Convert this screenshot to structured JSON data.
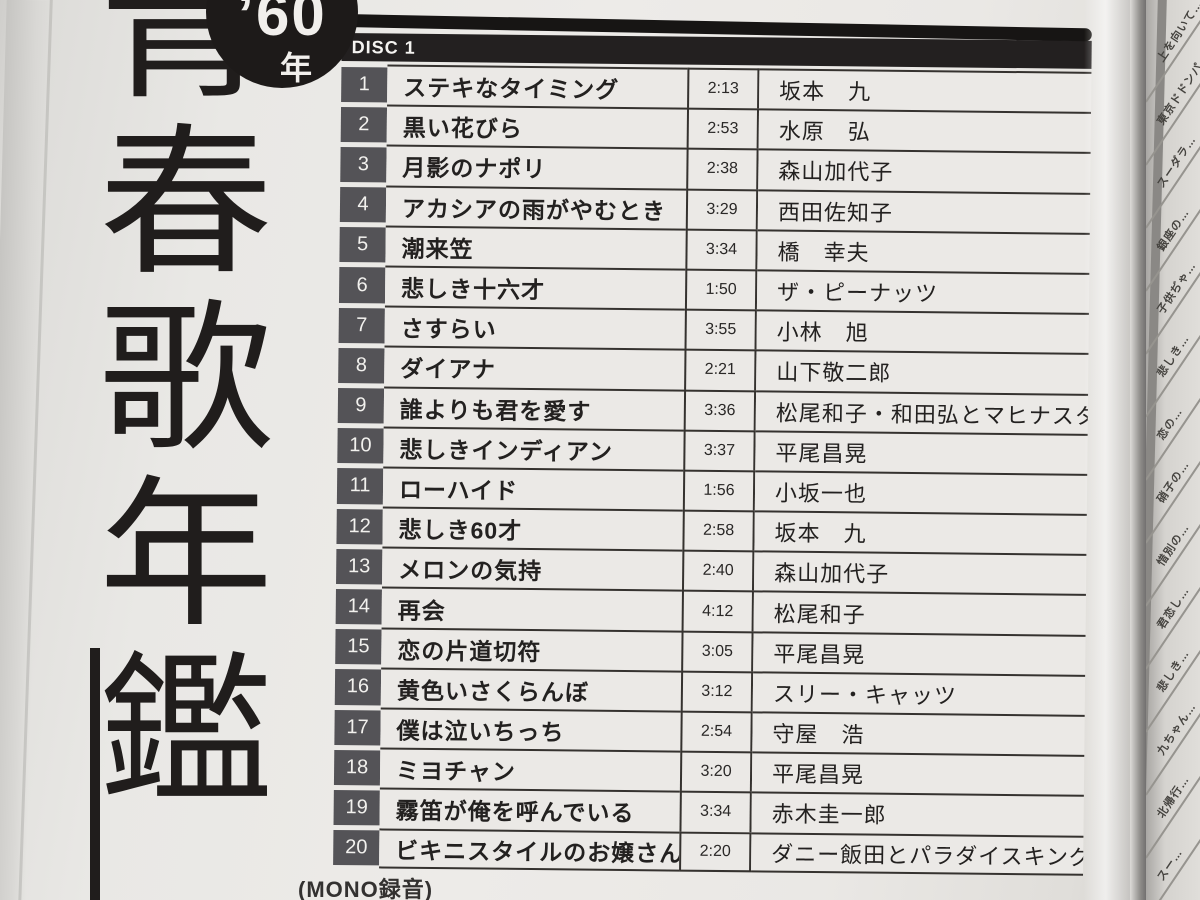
{
  "page": {
    "series_title_chars": [
      "青",
      "春",
      "歌",
      "年",
      "鑑"
    ],
    "year_badge": {
      "year": "’60",
      "suffix": "年"
    },
    "footer_note": "(MONO録音)"
  },
  "tracklist": {
    "header": "DISC 1",
    "tracks": [
      {
        "no": "1",
        "title": "ステキなタイミング",
        "time": "2:13",
        "artist": "坂本　九"
      },
      {
        "no": "2",
        "title": "黒い花びら",
        "time": "2:53",
        "artist": "水原　弘"
      },
      {
        "no": "3",
        "title": "月影のナポリ",
        "time": "2:38",
        "artist": "森山加代子"
      },
      {
        "no": "4",
        "title": "アカシアの雨がやむとき",
        "time": "3:29",
        "artist": "西田佐知子"
      },
      {
        "no": "5",
        "title": "潮来笠",
        "time": "3:34",
        "artist": "橋　幸夫"
      },
      {
        "no": "6",
        "title": "悲しき十六才",
        "time": "1:50",
        "artist": "ザ・ピーナッツ"
      },
      {
        "no": "7",
        "title": "さすらい",
        "time": "3:55",
        "artist": "小林　旭"
      },
      {
        "no": "8",
        "title": "ダイアナ",
        "time": "2:21",
        "artist": "山下敬二郎"
      },
      {
        "no": "9",
        "title": "誰よりも君を愛す",
        "time": "3:36",
        "artist": "松尾和子・和田弘とマヒナスターズ"
      },
      {
        "no": "10",
        "title": "悲しきインディアン",
        "time": "3:37",
        "artist": "平尾昌晃"
      },
      {
        "no": "11",
        "title": "ローハイド",
        "time": "1:56",
        "artist": "小坂一也"
      },
      {
        "no": "12",
        "title": "悲しき60才",
        "time": "2:58",
        "artist": "坂本　九"
      },
      {
        "no": "13",
        "title": "メロンの気持",
        "time": "2:40",
        "artist": "森山加代子"
      },
      {
        "no": "14",
        "title": "再会",
        "time": "4:12",
        "artist": "松尾和子"
      },
      {
        "no": "15",
        "title": "恋の片道切符",
        "time": "3:05",
        "artist": "平尾昌晃"
      },
      {
        "no": "16",
        "title": "黄色いさくらんぼ",
        "time": "3:12",
        "artist": "スリー・キャッツ"
      },
      {
        "no": "17",
        "title": "僕は泣いちっち",
        "time": "2:54",
        "artist": "守屋　浩"
      },
      {
        "no": "18",
        "title": "ミヨチャン",
        "time": "3:20",
        "artist": "平尾昌晃"
      },
      {
        "no": "19",
        "title": "霧笛が俺を呼んでいる",
        "time": "3:34",
        "artist": "赤木圭一郎"
      },
      {
        "no": "20",
        "title": "ビキニスタイルのお嬢さん",
        "time": "2:20",
        "artist": "ダニー飯田とパラダイスキング"
      }
    ]
  },
  "adjacent_page": {
    "fragments": [
      "上を向いて…",
      "東京ドドンパ…",
      "スーダラ…",
      "銀座の…",
      "子供ぢゃ…",
      "悲しき…",
      "恋の…",
      "硝子の…",
      "惜別の…",
      "君恋し…",
      "悲しき…",
      "九ちゃん…",
      "北帰行…",
      "スー…"
    ]
  },
  "colors": {
    "ink": "#201d1c",
    "number_box": "#545357",
    "paper": "#ebe9e6",
    "rule": "#35322f"
  }
}
